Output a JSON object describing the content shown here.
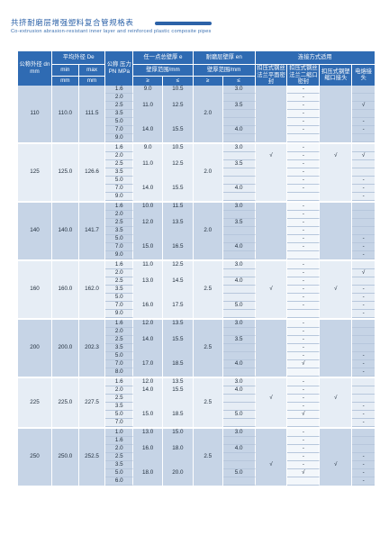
{
  "header": {
    "title": "共挤耐磨层增强塑料复合管规格表",
    "subtitle": "Co-extrusion abrasion-resistant inner layer and reinforced plastic composite pipes"
  },
  "columns": {
    "dn": "公称外径 dn mm",
    "de": "平均外径 De",
    "de_min": "min",
    "de_max": "max",
    "mm": "mm",
    "pn": "公称 压力 PN MPa",
    "e": "任一点总壁厚 e",
    "wall": "壁厚范围/mm",
    "ge": "≥",
    "le": "≤",
    "en": "耐磨层壁厚 en",
    "en_wall": "壁厚范围/mm",
    "conn": "连接方式适用",
    "c1": "扣压式钢丝法兰平面密封",
    "c2": "扣压式钢丝法兰二缩口密封",
    "c3": "扣压式钢塑缩口接头",
    "c4": "电熔接头"
  },
  "groups": [
    {
      "dn": "110",
      "min": "110.0",
      "max": "111.5",
      "en_mid": "2.0",
      "pn": [
        "1.6",
        "2.0",
        "2.5",
        "3.5",
        "5.0",
        "7.0",
        "9.0"
      ],
      "e_min": [
        "9.0",
        "",
        "11.0",
        "",
        "",
        "14.0",
        ""
      ],
      "e_max": [
        "10.5",
        "",
        "12.5",
        "",
        "",
        "15.5",
        ""
      ],
      "en_max": [
        "3.0",
        "",
        "3.5",
        "",
        "",
        "4.0",
        ""
      ],
      "c1": [
        "",
        "",
        "",
        "",
        "",
        "",
        ""
      ],
      "c2": [
        "-",
        "-",
        "-",
        "-",
        "-",
        "-",
        ""
      ],
      "c3": [
        "",
        "",
        "",
        "",
        "",
        "",
        ""
      ],
      "c4": [
        "",
        "",
        "√",
        "",
        "-",
        "-",
        ""
      ]
    },
    {
      "dn": "125",
      "min": "125.0",
      "max": "126.6",
      "en_mid": "2.0",
      "pn": [
        "1.6",
        "2.0",
        "2.5",
        "3.5",
        "5.0",
        "7.0",
        "9.0"
      ],
      "e_min": [
        "9.0",
        "",
        "11.0",
        "",
        "",
        "14.0",
        ""
      ],
      "e_max": [
        "10.5",
        "",
        "12.5",
        "",
        "",
        "15.5",
        ""
      ],
      "en_max": [
        "3.0",
        "",
        "3.5",
        "",
        "",
        "4.0",
        ""
      ],
      "c1": [
        "",
        "√",
        "",
        "",
        "",
        "",
        ""
      ],
      "c2": [
        "-",
        "-",
        "-",
        "-",
        "-",
        "-",
        ""
      ],
      "c3": [
        "",
        "√",
        "",
        "",
        "",
        "",
        ""
      ],
      "c4": [
        "",
        "√",
        "",
        "",
        "-",
        "-",
        "-"
      ]
    },
    {
      "dn": "140",
      "min": "140.0",
      "max": "141.7",
      "en_mid": "2.0",
      "pn": [
        "1.6",
        "2.0",
        "2.5",
        "3.5",
        "5.0",
        "7.0",
        "9.0"
      ],
      "e_min": [
        "10.0",
        "",
        "12.0",
        "",
        "",
        "15.0",
        ""
      ],
      "e_max": [
        "11.5",
        "",
        "13.5",
        "",
        "",
        "16.5",
        ""
      ],
      "en_max": [
        "3.0",
        "",
        "3.5",
        "",
        "",
        "4.0",
        ""
      ],
      "c1": [
        "",
        "",
        "",
        "",
        "",
        "",
        ""
      ],
      "c2": [
        "-",
        "-",
        "-",
        "-",
        "-",
        "-",
        ""
      ],
      "c3": [
        "",
        "",
        "",
        "",
        "",
        "",
        ""
      ],
      "c4": [
        "",
        "",
        "",
        "",
        "-",
        "-",
        "-"
      ]
    },
    {
      "dn": "160",
      "min": "160.0",
      "max": "162.0",
      "en_mid": "2.5",
      "pn": [
        "1.6",
        "2.0",
        "2.5",
        "3.5",
        "5.0",
        "7.0",
        "9.0"
      ],
      "e_min": [
        "11.0",
        "",
        "13.0",
        "",
        "",
        "16.0",
        ""
      ],
      "e_max": [
        "12.5",
        "",
        "14.5",
        "",
        "",
        "17.5",
        ""
      ],
      "en_max": [
        "3.0",
        "",
        "4.0",
        "",
        "",
        "5.0",
        ""
      ],
      "c1": [
        "",
        "",
        "",
        "√",
        "",
        "",
        ""
      ],
      "c2": [
        "-",
        "-",
        "-",
        "-",
        "-",
        "-",
        ""
      ],
      "c3": [
        "",
        "",
        "",
        "√",
        "",
        "",
        ""
      ],
      "c4": [
        "",
        "√",
        "",
        "-",
        "-",
        "-",
        "-"
      ]
    },
    {
      "dn": "200",
      "min": "200.0",
      "max": "202.3",
      "en_mid": "2.5",
      "pn": [
        "1.6",
        "2.0",
        "2.5",
        "3.5",
        "5.0",
        "7.0",
        "8.0"
      ],
      "e_min": [
        "12.0",
        "",
        "14.0",
        "",
        "",
        "17.0",
        ""
      ],
      "e_max": [
        "13.5",
        "",
        "15.5",
        "",
        "",
        "18.5",
        ""
      ],
      "en_max": [
        "3.0",
        "",
        "3.5",
        "",
        "",
        "4.0",
        ""
      ],
      "c1": [
        "",
        "",
        "",
        "",
        "",
        "",
        ""
      ],
      "c2": [
        "-",
        "-",
        "-",
        "-",
        "-",
        "√",
        ""
      ],
      "c3": [
        "",
        "",
        "",
        "",
        "",
        "",
        ""
      ],
      "c4": [
        "",
        "",
        "",
        "",
        "-",
        "-",
        "-"
      ]
    },
    {
      "dn": "225",
      "min": "225.0",
      "max": "227.5",
      "en_mid": "2.5",
      "pn": [
        "1.6",
        "2.0",
        "2.5",
        "3.5",
        "5.0",
        "7.0"
      ],
      "e_min": [
        "12.0",
        "14.0",
        "",
        "",
        "15.0",
        ""
      ],
      "e_max": [
        "13.5",
        "15.5",
        "",
        "",
        "18.5",
        ""
      ],
      "en_max": [
        "3.0",
        "4.0",
        "",
        "",
        "5.0",
        ""
      ],
      "c1": [
        "",
        "",
        "√",
        "",
        "",
        ""
      ],
      "c2": [
        "-",
        "-",
        "-",
        "-",
        "√",
        ""
      ],
      "c3": [
        "",
        "",
        "√",
        "",
        "",
        ""
      ],
      "c4": [
        "",
        "",
        "",
        "-",
        "-",
        "-"
      ]
    },
    {
      "dn": "250",
      "min": "250.0",
      "max": "252.5",
      "en_mid": "2.5",
      "pn": [
        "1.0",
        "1.6",
        "2.0",
        "2.5",
        "3.5",
        "5.0",
        "6.0"
      ],
      "e_min": [
        "13.0",
        "",
        "16.0",
        "",
        "",
        "18.0",
        ""
      ],
      "e_max": [
        "15.0",
        "",
        "18.0",
        "",
        "",
        "20.0",
        ""
      ],
      "en_max": [
        "3.0",
        "",
        "4.0",
        "",
        "",
        "5.0",
        ""
      ],
      "c1": [
        "",
        "",
        "",
        "",
        "√",
        "",
        ""
      ],
      "c2": [
        "-",
        "-",
        "-",
        "-",
        "-",
        "√",
        ""
      ],
      "c3": [
        "",
        "",
        "",
        "",
        "√",
        "",
        ""
      ],
      "c4": [
        "",
        "",
        "",
        "-",
        "-",
        "-",
        "-"
      ]
    }
  ]
}
